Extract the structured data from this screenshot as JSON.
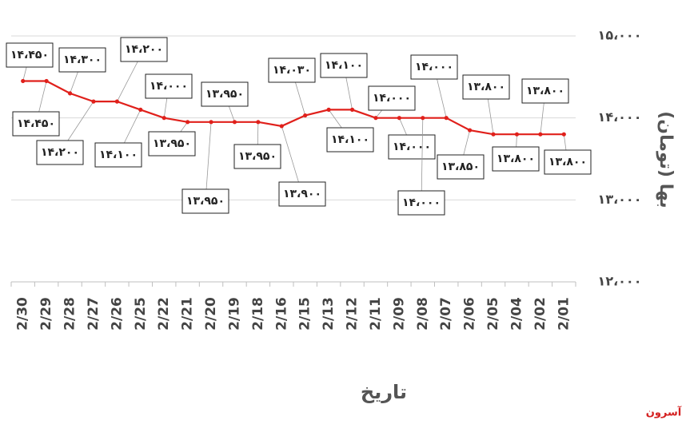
{
  "chart_data": {
    "type": "line",
    "x_label": "تاریخ",
    "y_label": "بها (تومان)",
    "watermark": "آسرون",
    "categories": [
      "2/30",
      "2/29",
      "2/28",
      "2/27",
      "2/26",
      "2/25",
      "2/22",
      "2/21",
      "2/20",
      "2/19",
      "2/18",
      "2/16",
      "2/15",
      "2/13",
      "2/12",
      "2/11",
      "2/09",
      "2/08",
      "2/07",
      "2/06",
      "2/05",
      "2/04",
      "2/02",
      "2/01"
    ],
    "series": [
      {
        "name": "بها",
        "color": "#e0201b",
        "values": [
          14450,
          14450,
          14300,
          14200,
          14200,
          14100,
          14000,
          13950,
          13950,
          13950,
          13950,
          13900,
          14030,
          14100,
          14100,
          14000,
          14000,
          14000,
          14000,
          13850,
          13800,
          13800,
          13800,
          13800
        ],
        "value_labels": [
          "۱۴،۴۵۰",
          "۱۴،۴۵۰",
          "۱۴،۳۰۰",
          "۱۴،۲۰۰",
          "۱۴،۲۰۰",
          "۱۴،۱۰۰",
          "۱۴،۰۰۰",
          "۱۳،۹۵۰",
          "۱۳،۹۵۰",
          "۱۳،۹۵۰",
          "۱۳،۹۵۰",
          "۱۳،۹۰۰",
          "۱۴،۰۳۰",
          "۱۴،۱۰۰",
          "۱۴،۱۰۰",
          "۱۴،۰۰۰",
          "۱۴،۰۰۰",
          "۱۴،۰۰۰",
          "۱۴،۰۰۰",
          "۱۳،۸۵۰",
          "۱۳،۸۰۰",
          "۱۳،۸۰۰",
          "۱۳،۸۰۰",
          "۱۳،۸۰۰"
        ]
      }
    ],
    "ylim": [
      12000,
      15000
    ],
    "yticks": [
      {
        "value": 12000,
        "label": "۱۲،۰۰۰"
      },
      {
        "value": 13000,
        "label": "۱۳،۰۰۰"
      },
      {
        "value": 14000,
        "label": "۱۴،۰۰۰"
      },
      {
        "value": 15000,
        "label": "۱۵،۰۰۰"
      }
    ],
    "y_axis_side": "right",
    "grid": true
  }
}
